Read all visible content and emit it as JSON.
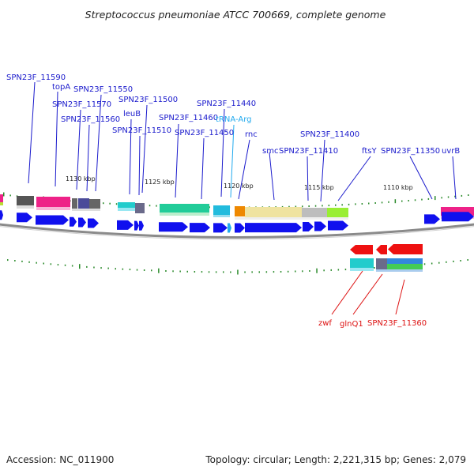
{
  "title": "Streptococcus pneumoniae ATCC 700669, complete genome",
  "accession": "Accession: NC_011900",
  "summary": "Topology: circular; Length: 2,221,315 bp; Genes: 2,079",
  "colors": {
    "forward_label": "#1a1acc",
    "reverse_label": "#dd1111",
    "trna_label": "#22aaee",
    "forward_cds": "#1010ee",
    "reverse_cds": "#ee1111",
    "tick": "#2a8a2a",
    "backbone": "#888888"
  },
  "scale_labels": [
    "1130 kbp",
    "1125 kbp",
    "1120 kbp",
    "1115 kbp",
    "1110 kbp"
  ],
  "forward_labels": [
    "SPN23F_11590",
    "topA",
    "SPN23F_11550",
    "SPN23F_11570",
    "SPN23F_11560",
    "SPN23F_11500",
    "leuB",
    "SPN23F_11510",
    "SPN23F_11440",
    "SPN23F_11460",
    "tRNA-Arg",
    "SPN23F_11450",
    "rnc",
    "smc",
    "SPN23F_11410",
    "SPN23F_11400",
    "ftsY",
    "SPN23F_11350",
    "uvrB"
  ],
  "reverse_labels": [
    "zwf",
    "glnQ1",
    "SPN23F_11360"
  ]
}
